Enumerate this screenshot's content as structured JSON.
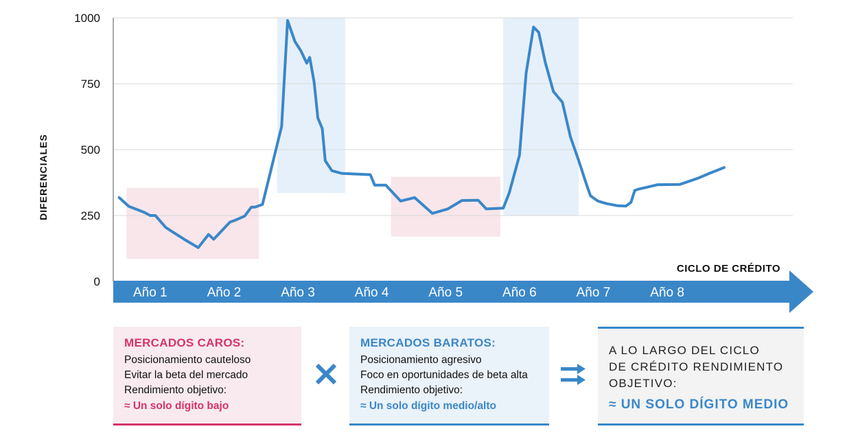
{
  "chart_data": {
    "type": "line",
    "title": "",
    "ylabel": "DIFERENCIALES",
    "xlabel": "CICLO DE CRÉDITO",
    "ylim": [
      0,
      1000
    ],
    "xlim": [
      0.5,
      9.7
    ],
    "yticks": [
      0,
      250,
      500,
      750,
      1000
    ],
    "grid": true,
    "legend": "none",
    "colors": {
      "line": "#3a87c8",
      "caro_band": "#f8e6ea",
      "barato_band": "#e6f0fa",
      "axis": "#3a87c8"
    },
    "year_labels": [
      "Año 1",
      "Año 2",
      "Año 3",
      "Año 4",
      "Año 5",
      "Año 6",
      "Año 7",
      "Año 8"
    ],
    "bands": [
      {
        "kind": "caro",
        "x0": 0.68,
        "x1": 2.47,
        "y0": 85,
        "y1": 355
      },
      {
        "kind": "barato",
        "x0": 2.72,
        "x1": 3.64,
        "y0": 335,
        "y1": 1000
      },
      {
        "kind": "caro",
        "x0": 4.26,
        "x1": 5.74,
        "y0": 170,
        "y1": 397
      },
      {
        "kind": "barato",
        "x0": 5.78,
        "x1": 6.8,
        "y0": 250,
        "y1": 1000
      }
    ],
    "series": [
      {
        "x": [
          0.58,
          0.71,
          0.92,
          1.0,
          1.07,
          1.21,
          1.29,
          1.46,
          1.65,
          1.79,
          1.86,
          2.08,
          2.15,
          2.28,
          2.37,
          2.42,
          2.52,
          2.78,
          2.86,
          2.96,
          3.04,
          3.12,
          3.16,
          3.22,
          3.27,
          3.33,
          3.37,
          3.46,
          3.59,
          3.98,
          4.04,
          4.19,
          4.39,
          4.58,
          4.82,
          5.03,
          5.22,
          5.44,
          5.55,
          5.78,
          5.86,
          6.0,
          6.09,
          6.19,
          6.26,
          6.35,
          6.46,
          6.58,
          6.69,
          6.8,
          6.91,
          6.96,
          7.06,
          7.18,
          7.33,
          7.44,
          7.46,
          7.51,
          7.56,
          7.61,
          7.72,
          7.87,
          8.17,
          8.42,
          8.57,
          8.77
        ],
        "y": [
          318,
          285,
          262,
          250,
          250,
          205,
          190,
          160,
          128,
          178,
          160,
          225,
          232,
          248,
          282,
          282,
          292,
          588,
          990,
          910,
          875,
          828,
          850,
          755,
          620,
          580,
          458,
          420,
          410,
          405,
          365,
          365,
          305,
          318,
          258,
          275,
          307,
          308,
          275,
          278,
          335,
          478,
          790,
          965,
          945,
          830,
          720,
          680,
          548,
          460,
          365,
          325,
          305,
          295,
          287,
          286,
          290,
          300,
          345,
          350,
          357,
          367,
          368,
          392,
          410,
          432
        ]
      }
    ],
    "boxes": {
      "caros": {
        "title": "MERCADOS CAROS:",
        "lines": [
          "Posicionamiento cauteloso",
          "Evitar la beta del mercado",
          "Rendimiento objetivo:"
        ],
        "target": "≈ Un solo dígito bajo"
      },
      "baratos": {
        "title": "MERCADOS BARATOS:",
        "lines": [
          "Posicionamiento agresivo",
          "Foco en oportunidades de beta alta",
          "Rendimiento objetivo:"
        ],
        "target": "≈ Un solo dígito medio/alto"
      },
      "objetivo": {
        "lines": [
          "A LO LARGO DEL CICLO",
          "DE CRÉDITO RENDIMIENTO",
          "OBJETIVO:"
        ],
        "target": "≈ UN SOLO DÍGITO MEDIO"
      }
    },
    "icons": {
      "between_first": "times-icon",
      "between_second": "double-arrow-icon"
    }
  }
}
